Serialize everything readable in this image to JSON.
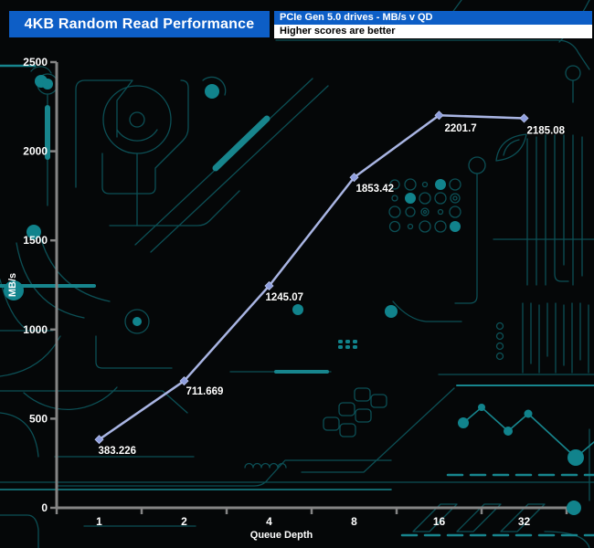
{
  "header": {
    "title": "4KB Random Read Performance",
    "subtitle_line1": "PCIe Gen 5.0 drives - MB/s v QD",
    "subtitle_line2": "Higher scores are better"
  },
  "chart_data": {
    "type": "line",
    "categories": [
      "1",
      "2",
      "4",
      "8",
      "16",
      "32"
    ],
    "values": [
      383.226,
      711.669,
      1245.07,
      1853.42,
      2201.7,
      2185.08
    ],
    "point_labels": [
      "383.226",
      "711.669",
      "1245.07",
      "1853.42",
      "2201.7",
      "2185.08"
    ],
    "title": "4KB Random Read Performance",
    "xlabel": "Queue Depth",
    "ylabel": "MB/s",
    "ylim": [
      0,
      2500
    ],
    "ytick_interval": 500,
    "yticks": [
      "0",
      "500",
      "1000",
      "1500",
      "2000",
      "2500"
    ],
    "grid": false,
    "legend_position": "none"
  },
  "colors": {
    "header_blue": "#0d5ec6",
    "header_text": "#ffffff",
    "note_bg": "#ffffff",
    "note_text": "#000000",
    "canvas_bg": "#050708",
    "circuit_teal_dim": "#0c4f55",
    "circuit_teal_bright": "#17858d",
    "axis_gray": "#858585",
    "series_line": "#a9b5e3",
    "series_marker": "#8e9ede",
    "label_text": "#ffffff"
  }
}
